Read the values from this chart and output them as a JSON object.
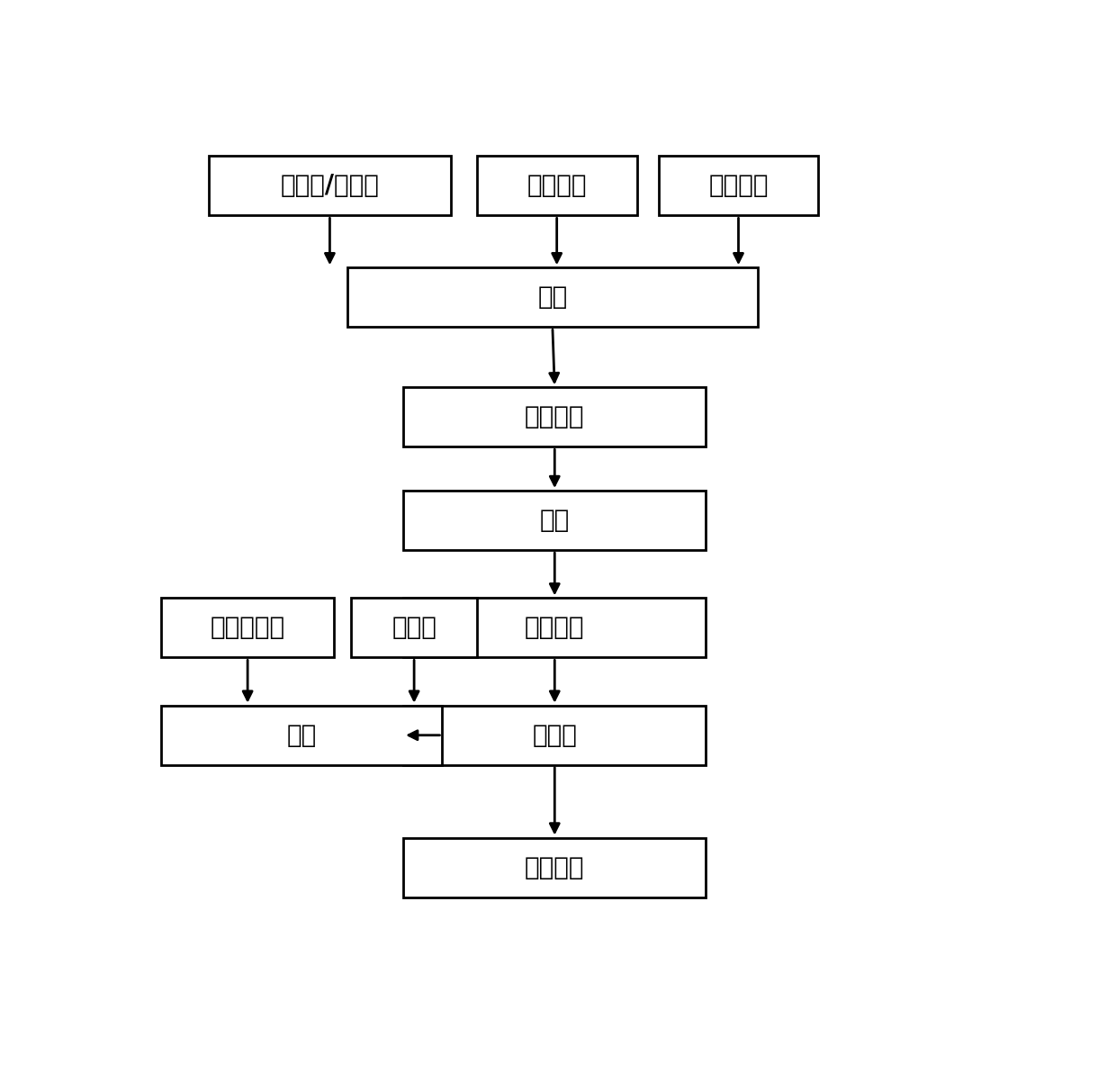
{
  "bg_color": "#ffffff",
  "box_color": "#ffffff",
  "box_edge_color": "#000000",
  "arrow_color": "#000000",
  "font_size": 20,
  "boxes": {
    "塑化剂/润湿剂": [
      0.08,
      0.895,
      0.28,
      0.072
    ],
    "活性物质": [
      0.39,
      0.895,
      0.185,
      0.072
    ],
    "辅助物质": [
      0.6,
      0.895,
      0.185,
      0.072
    ],
    "造粒": [
      0.24,
      0.76,
      0.475,
      0.072
    ],
    "膜片注塑": [
      0.305,
      0.615,
      0.35,
      0.072
    ],
    "硫化": [
      0.305,
      0.49,
      0.35,
      0.072
    ],
    "冷扎成型": [
      0.305,
      0.36,
      0.35,
      0.072
    ],
    "热复合": [
      0.305,
      0.23,
      0.35,
      0.072
    ],
    "模切排料": [
      0.305,
      0.07,
      0.35,
      0.072
    ],
    "中间支撑体": [
      0.025,
      0.36,
      0.2,
      0.072
    ],
    "热敏胶": [
      0.245,
      0.36,
      0.145,
      0.072
    ],
    "印刷": [
      0.025,
      0.23,
      0.325,
      0.072
    ]
  }
}
